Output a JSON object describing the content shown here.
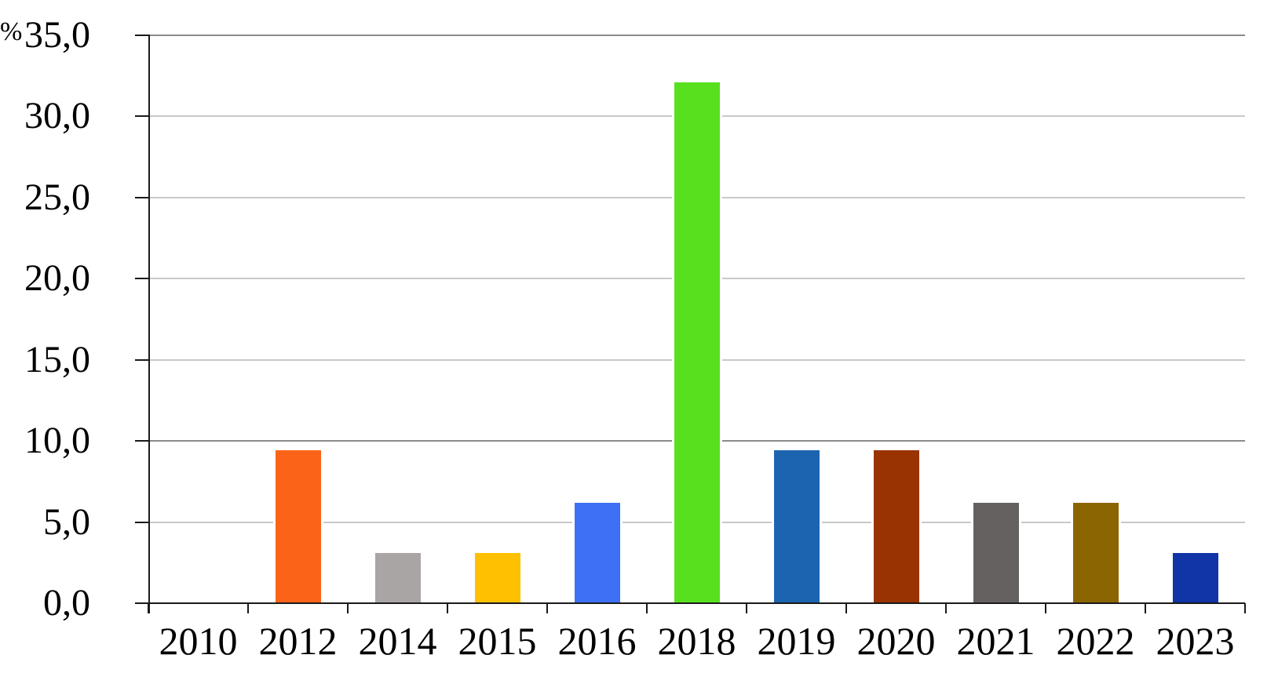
{
  "chart_data": {
    "type": "bar",
    "title": "",
    "ylabel": "%",
    "xlabel": "",
    "categories": [
      "2010",
      "2012",
      "2014",
      "2015",
      "2016",
      "2018",
      "2019",
      "2020",
      "2021",
      "2022",
      "2023"
    ],
    "values": [
      0.0,
      9.4,
      3.1,
      3.1,
      6.2,
      32.1,
      9.4,
      9.4,
      6.2,
      6.2,
      3.1
    ],
    "bar_colors": [
      "#ffffff",
      "#FB6418",
      "#A9A5A4",
      "#FEC001",
      "#3D70F4",
      "#58E01E",
      "#1D64B0",
      "#993302",
      "#656161",
      "#8B6502",
      "#1134A6"
    ],
    "ylim": [
      0,
      35
    ],
    "ytick_step": 5,
    "ytick_labels": [
      "0,0",
      "5,0",
      "10,0",
      "15,0",
      "20,0",
      "25,0",
      "30,0",
      "35,0"
    ],
    "grid": true,
    "dark_gridline_values": [
      10,
      35
    ],
    "legend": "none",
    "colors": {
      "grid_light": "#c9c9c9",
      "grid_dark": "#8a8a8a",
      "axis": "#1a1a1a",
      "text": "#000000",
      "background": "#ffffff"
    }
  },
  "layout_labels": {
    "percent_sign": "%"
  }
}
